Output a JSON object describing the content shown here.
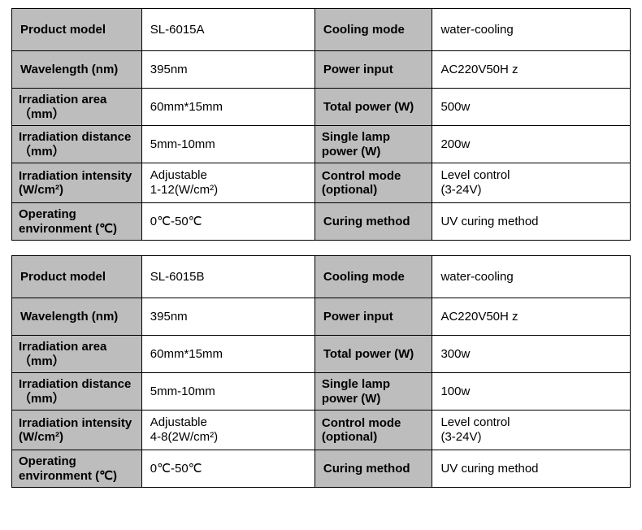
{
  "tables": [
    {
      "rows": [
        {
          "l1": "Product model",
          "v1": "SL-6015A",
          "l2": "Cooling mode",
          "v2": "water-cooling",
          "firstRow": true
        },
        {
          "l1": "Wavelength (nm)",
          "v1": "395nm",
          "l2": "Power input",
          "v2": "AC220V50H z"
        },
        {
          "l1": "Irradiation area（mm）",
          "v1": "60mm*15mm",
          "l2": "Total power (W)",
          "v2": "500w",
          "tightL1": true
        },
        {
          "l1": "Irradiation distance（mm）",
          "v1": "5mm-10mm",
          "l2": "Single lamp power (W)",
          "v2": "200w",
          "tightL1": true,
          "tightL2": true
        },
        {
          "l1": "Irradiation intensity (W/cm²)",
          "v1": "Adjustable\n1-12(W/cm²)",
          "l2": "Control mode (optional)",
          "v2": "Level control\n(3-24V)",
          "tightL1": true,
          "tightL2": true,
          "multiV1": true,
          "multiV2": true
        },
        {
          "l1": "Operating environment (℃)",
          "v1": "0℃-50℃",
          "l2": "Curing method",
          "v2": "UV curing method",
          "tightL1": true
        }
      ]
    },
    {
      "rows": [
        {
          "l1": "Product model",
          "v1": "SL-6015B",
          "l2": "Cooling mode",
          "v2": "water-cooling",
          "firstRow": true
        },
        {
          "l1": "Wavelength (nm)",
          "v1": "395nm",
          "l2": "Power input",
          "v2": "AC220V50H z"
        },
        {
          "l1": "Irradiation area（mm）",
          "v1": "60mm*15mm",
          "l2": "Total power (W)",
          "v2": "300w",
          "tightL1": true
        },
        {
          "l1": "Irradiation distance（mm）",
          "v1": "5mm-10mm",
          "l2": "Single lamp power (W)",
          "v2": "100w",
          "tightL1": true,
          "tightL2": true
        },
        {
          "l1": "Irradiation intensity (W/cm²)",
          "v1": "Adjustable\n4-8(2W/cm²)",
          "l2": "Control mode (optional)",
          "v2": "Level control\n(3-24V)",
          "tightL1": true,
          "tightL2": true,
          "multiV1": true,
          "multiV2": true
        },
        {
          "l1": "Operating environment (℃)",
          "v1": "0℃-50℃",
          "l2": "Curing method",
          "v2": "UV curing method",
          "tightL1": true
        }
      ]
    }
  ],
  "styles": {
    "label_bg": "#bdbdbd",
    "value_bg": "#ffffff",
    "border_color": "#000000",
    "font_size": 15
  }
}
